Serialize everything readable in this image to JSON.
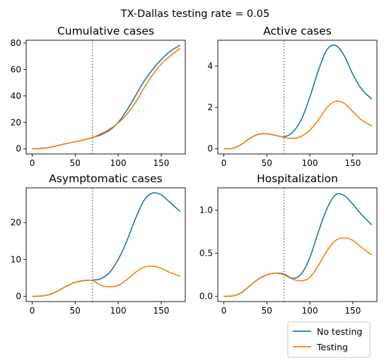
{
  "figure": {
    "suptitle": "TX-Dallas testing rate = 0.05"
  },
  "legend": {
    "entries": [
      "No testing",
      "Testing"
    ]
  },
  "colors": {
    "no_testing": "#1f77b4",
    "testing": "#ff7f0e",
    "vline": "#808080"
  },
  "chart_data": [
    {
      "type": "line",
      "title": "Cumulative cases",
      "xlim": [
        -7,
        178
      ],
      "ylim": [
        -3.9,
        82.1
      ],
      "xticks": [
        0,
        50,
        100,
        150
      ],
      "yticks": [
        0,
        20,
        40,
        60,
        80
      ],
      "vline_x": 70,
      "series": [
        {
          "name": "No testing",
          "x": [
            0,
            10,
            20,
            30,
            40,
            50,
            60,
            70,
            80,
            90,
            100,
            110,
            120,
            130,
            140,
            150,
            160,
            172
          ],
          "y": [
            0,
            0.2,
            1.0,
            2.5,
            4.0,
            5.3,
            6.8,
            8.5,
            10.6,
            14.0,
            20.0,
            29.0,
            40.0,
            51.0,
            60.0,
            67.5,
            73.5,
            78.5
          ]
        },
        {
          "name": "Testing",
          "x": [
            0,
            10,
            20,
            30,
            40,
            50,
            60,
            70,
            80,
            90,
            100,
            110,
            120,
            130,
            140,
            150,
            160,
            172
          ],
          "y": [
            0,
            0.2,
            1.0,
            2.5,
            4.0,
            5.3,
            6.8,
            8.5,
            11.5,
            15.0,
            19.5,
            26.0,
            35.0,
            46.0,
            56.0,
            64.0,
            70.0,
            76.0
          ]
        }
      ]
    },
    {
      "type": "line",
      "title": "Active cases",
      "xlim": [
        -7,
        178
      ],
      "ylim": [
        -0.25,
        5.25
      ],
      "xticks": [
        0,
        50,
        100,
        150
      ],
      "yticks": [
        0,
        2,
        4
      ],
      "vline_x": 70,
      "series": [
        {
          "name": "No testing",
          "x": [
            0,
            10,
            20,
            30,
            40,
            50,
            60,
            70,
            80,
            90,
            100,
            110,
            120,
            130,
            140,
            150,
            160,
            172
          ],
          "y": [
            0,
            0.02,
            0.2,
            0.5,
            0.7,
            0.72,
            0.65,
            0.58,
            0.8,
            1.4,
            2.5,
            3.8,
            4.8,
            5.0,
            4.5,
            3.6,
            2.9,
            2.4
          ]
        },
        {
          "name": "Testing",
          "x": [
            0,
            10,
            20,
            30,
            40,
            50,
            60,
            70,
            80,
            90,
            100,
            110,
            120,
            130,
            140,
            150,
            160,
            172
          ],
          "y": [
            0,
            0.02,
            0.2,
            0.5,
            0.7,
            0.72,
            0.65,
            0.55,
            0.5,
            0.6,
            0.9,
            1.4,
            2.0,
            2.3,
            2.2,
            1.8,
            1.4,
            1.1
          ]
        }
      ]
    },
    {
      "type": "line",
      "title": "Asymptomatic cases",
      "xlim": [
        -7,
        178
      ],
      "ylim": [
        -1.4,
        29.4
      ],
      "xticks": [
        0,
        50,
        100,
        150
      ],
      "yticks": [
        0,
        10,
        20
      ],
      "vline_x": 70,
      "series": [
        {
          "name": "No testing",
          "x": [
            0,
            10,
            20,
            30,
            40,
            50,
            60,
            70,
            80,
            90,
            100,
            110,
            120,
            130,
            140,
            150,
            160,
            172
          ],
          "y": [
            0,
            0.1,
            0.5,
            1.5,
            2.8,
            3.8,
            4.3,
            4.4,
            4.8,
            6.5,
            10.0,
            15.0,
            21.0,
            26.0,
            28.0,
            27.5,
            25.5,
            23.0
          ]
        },
        {
          "name": "Testing",
          "x": [
            0,
            10,
            20,
            30,
            40,
            50,
            60,
            70,
            80,
            90,
            100,
            110,
            120,
            130,
            140,
            150,
            160,
            172
          ],
          "y": [
            0,
            0.1,
            0.5,
            1.5,
            2.8,
            3.8,
            4.3,
            4.3,
            3.0,
            2.6,
            3.0,
            4.5,
            6.5,
            7.9,
            8.2,
            7.6,
            6.5,
            5.4
          ]
        }
      ]
    },
    {
      "type": "line",
      "title": "Hospitalization",
      "xlim": [
        -7,
        178
      ],
      "ylim": [
        -0.06,
        1.26
      ],
      "xticks": [
        0,
        50,
        100,
        150
      ],
      "yticks": [
        0.0,
        0.5,
        1.0
      ],
      "vline_x": 70,
      "series": [
        {
          "name": "No testing",
          "x": [
            0,
            10,
            20,
            30,
            40,
            50,
            60,
            70,
            80,
            90,
            100,
            110,
            120,
            130,
            140,
            150,
            160,
            172
          ],
          "y": [
            0,
            0.005,
            0.04,
            0.12,
            0.2,
            0.25,
            0.27,
            0.26,
            0.21,
            0.26,
            0.45,
            0.75,
            1.02,
            1.18,
            1.17,
            1.07,
            0.95,
            0.83
          ]
        },
        {
          "name": "Testing",
          "x": [
            0,
            10,
            20,
            30,
            40,
            50,
            60,
            70,
            80,
            90,
            100,
            110,
            120,
            130,
            140,
            150,
            160,
            172
          ],
          "y": [
            0,
            0.005,
            0.04,
            0.12,
            0.2,
            0.25,
            0.27,
            0.25,
            0.2,
            0.18,
            0.22,
            0.36,
            0.53,
            0.65,
            0.68,
            0.65,
            0.57,
            0.48
          ]
        }
      ]
    }
  ]
}
